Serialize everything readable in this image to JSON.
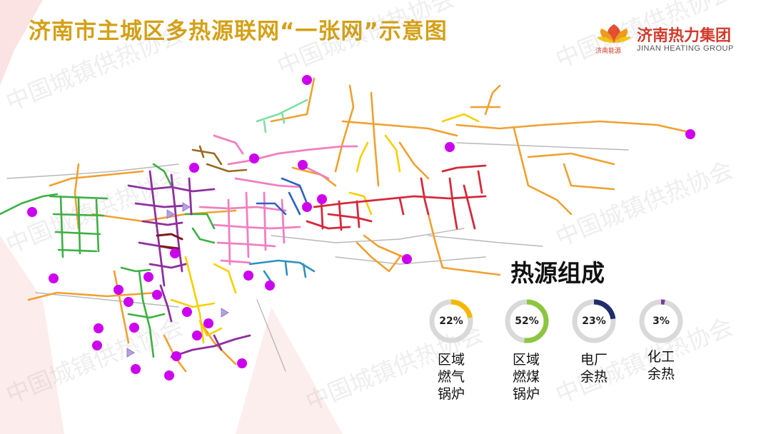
{
  "title": "济南市主城区多热源联网“一张网”示意图",
  "logo": {
    "name_cn": "济南热力集团",
    "name_en": "JINAN HEATING GROUP",
    "sub_brand": "济南能源"
  },
  "watermark": "中国城镇供热协会",
  "legend": {
    "title": "热源组成",
    "items": [
      {
        "pct_label": "22%",
        "fraction": 0.22,
        "color": "#f5b800",
        "label_lines": [
          "区域",
          "燃气",
          "锅炉"
        ]
      },
      {
        "pct_label": "52%",
        "fraction": 0.52,
        "color": "#8cc63f",
        "label_lines": [
          "区域",
          "燃煤",
          "锅炉"
        ]
      },
      {
        "pct_label": "23%",
        "fraction": 0.23,
        "color": "#1f2d6b",
        "label_lines": [
          "电厂",
          "余热"
        ]
      },
      {
        "pct_label": "3%",
        "fraction": 0.03,
        "color": "#7a3c9a",
        "label_lines": [
          "化工",
          "余热"
        ]
      }
    ]
  },
  "colors": {
    "title": "#d4a017",
    "heat_source_marker": "#cc00ee",
    "network_orange": "#f0a030",
    "network_yellow": "#f5d000",
    "network_green": "#3cb043",
    "network_purple": "#8e2f9e",
    "network_pink": "#f080c0",
    "network_red": "#d42a3c",
    "network_blue": "#3060c0",
    "network_teal": "#2f8fc0",
    "network_mint": "#7de0a0",
    "network_brown": "#9a6a20",
    "donut_track": "#d9d9d9"
  }
}
